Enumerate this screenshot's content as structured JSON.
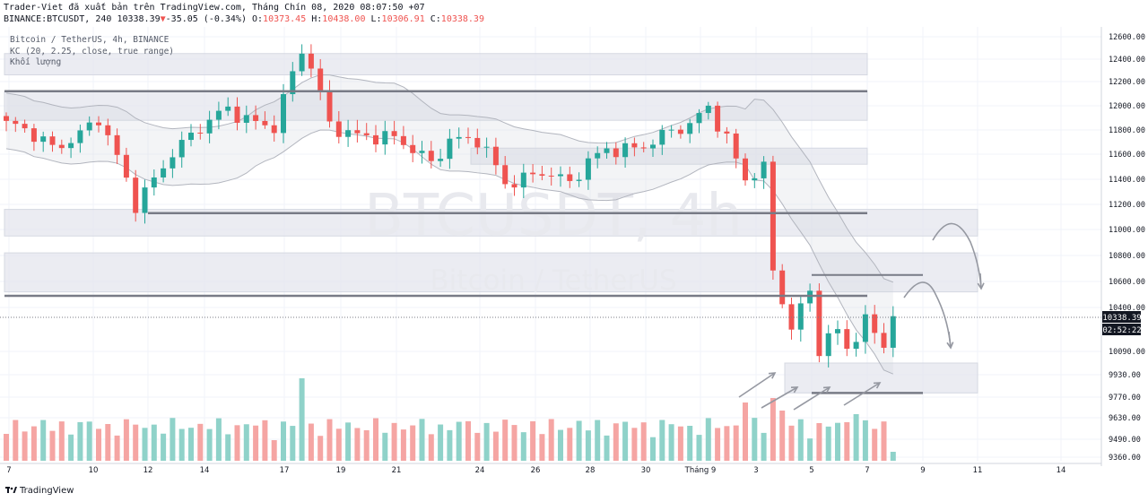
{
  "header": {
    "line1": "Trader-Viet đã xuất bản trên TradingView.com, Tháng Chín 08, 2020 08:07:50 +07",
    "symbol": "BINANCE:BTCUSDT, 240",
    "last": "10338.39",
    "arrow": "▼",
    "change": "-35.05 (-0.34%)",
    "o_label": "O:",
    "o": "10373.45",
    "h_label": "H:",
    "h": "10438.00",
    "l_label": "L:",
    "l": "10306.91",
    "c_label": "C:",
    "c": "10338.39"
  },
  "legend": {
    "title": "Bitcoin / TetherUS, 4h, BINANCE",
    "indicator": "KC (20, 2.25, close, true range)",
    "volume": "Khối lượng"
  },
  "watermark": {
    "symbol": "BTCUSDT, 4h",
    "name": "Bitcoin / TetherUS"
  },
  "footer": {
    "brand": "TradingView"
  },
  "price_tag": {
    "price": "10338.39",
    "countdown": "02:52:22"
  },
  "colors": {
    "up": "#26a69a",
    "down": "#ef5350",
    "up_volume": "#8fd2c9",
    "down_volume": "#f5a5a3",
    "zone": "#e4e6ee",
    "line": "#787b86",
    "channel": "#b2b5be"
  },
  "chart_data": {
    "type": "candlestick",
    "title": "Bitcoin / TetherUS, 4h, BINANCE",
    "y_tick_labels": [
      "12600.00",
      "12400.00",
      "12200.00",
      "12000.00",
      "11800.00",
      "11600.00",
      "11400.00",
      "11200.00",
      "11000.00",
      "10800.00",
      "10600.00",
      "10400.00",
      "10090.00",
      "9930.00",
      "9770.00",
      "9630.00",
      "9490.00",
      "9360.00"
    ],
    "x_tick_labels": [
      "7",
      "10",
      "12",
      "14",
      "17",
      "19",
      "21",
      "24",
      "26",
      "28",
      "30",
      "Tháng 9",
      "3",
      "5",
      "7",
      "9",
      "11",
      "14"
    ],
    "ohlc_path": [
      [
        0,
        11850
      ],
      [
        5,
        11650
      ],
      [
        10,
        11900
      ],
      [
        14,
        11180
      ],
      [
        18,
        11650
      ],
      [
        24,
        11950
      ],
      [
        29,
        11850
      ],
      [
        32,
        12450
      ],
      [
        33,
        12300
      ],
      [
        35,
        11850
      ],
      [
        42,
        11700
      ],
      [
        46,
        11550
      ],
      [
        48,
        11750
      ],
      [
        51,
        11700
      ],
      [
        54,
        11350
      ],
      [
        58,
        11500
      ],
      [
        61,
        11350
      ],
      [
        65,
        11650
      ],
      [
        70,
        11700
      ],
      [
        74,
        11820
      ],
      [
        76,
        12020
      ],
      [
        78,
        11750
      ],
      [
        80,
        11400
      ],
      [
        82,
        11450
      ],
      [
        83,
        10650
      ],
      [
        84,
        10450
      ],
      [
        84.5,
        10160
      ],
      [
        86,
        10420
      ],
      [
        87,
        10560
      ],
      [
        88,
        10150
      ],
      [
        90,
        10230
      ],
      [
        91,
        10090
      ],
      [
        93,
        10260
      ],
      [
        95,
        10150
      ],
      [
        96.5,
        10338
      ]
    ],
    "horizontal_levels": [
      12120,
      11130,
      10490,
      9800
    ],
    "zones": [
      [
        12260,
        12450
      ],
      [
        11880,
        12120
      ],
      [
        11520,
        11650
      ],
      [
        10950,
        11160
      ],
      [
        10520,
        10820
      ],
      [
        9800,
        10010
      ]
    ],
    "last_price": 10338.39,
    "countdown": "02:52:22"
  }
}
